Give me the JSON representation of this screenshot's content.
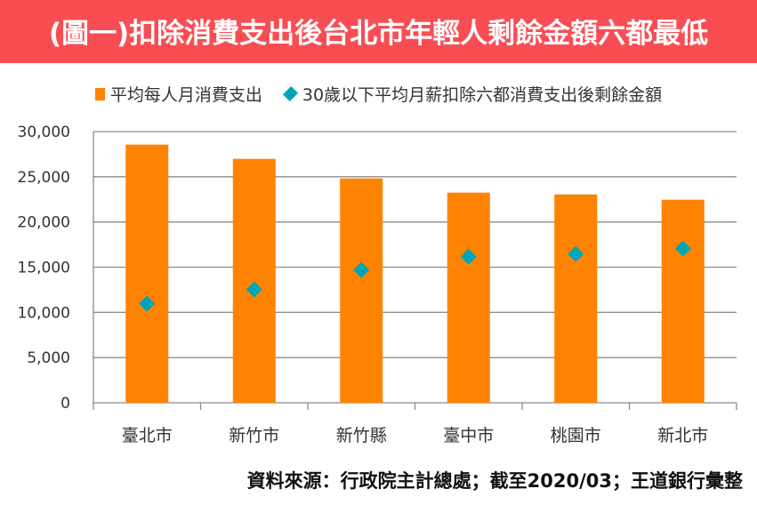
{
  "title": "(圖一)扣除消費支出後台北市年輕人剩餘金額六都最低",
  "source": "資料來源：行政院主計總處；截至2020/03；王道銀行彙整",
  "colors": {
    "banner": "#f94d54",
    "bar": "#ff8300",
    "marker": "#00a5b6",
    "grid": "#8c8c8c"
  },
  "chart_data": {
    "type": "bar",
    "title": "(圖一)扣除消費支出後台北市年輕人剩餘金額六都最低",
    "xlabel": "",
    "ylabel": "",
    "categories": [
      "臺北市",
      "新竹市",
      "新竹縣",
      "臺中市",
      "桃園市",
      "新北市"
    ],
    "series": [
      {
        "name": "平均每人月消費支出",
        "kind": "bar",
        "values": [
          28557,
          26984,
          24820,
          23246,
          23049,
          22459
        ]
      },
      {
        "name": "30歲以下平均月薪扣除六都消費支出後剩餘金額",
        "kind": "marker-diamond",
        "values": [
          10951,
          12525,
          14689,
          16164,
          16459,
          17049
        ]
      }
    ],
    "ylim": [
      0,
      30000
    ],
    "yticks": [
      "0",
      "5,000",
      "10,000",
      "15,000",
      "20,000",
      "25,000",
      "30,000"
    ],
    "ytick_values": [
      0,
      5000,
      10000,
      15000,
      20000,
      25000,
      30000
    ],
    "grid": true,
    "legend": "top"
  }
}
